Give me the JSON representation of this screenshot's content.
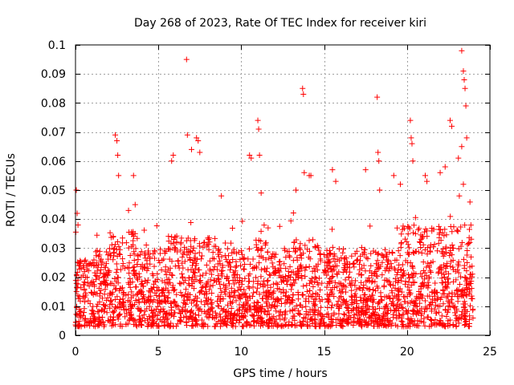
{
  "chart_data": {
    "type": "scatter",
    "title": "Day 268 of 2023, Rate Of TEC Index for receiver kiri",
    "xlabel": "GPS time / hours",
    "ylabel": "ROTI / TECUs",
    "xlim": [
      0,
      25
    ],
    "ylim": [
      0,
      0.1
    ],
    "xticks": [
      0,
      5,
      10,
      15,
      20,
      25
    ],
    "xtick_labels": [
      "0",
      "5",
      "10",
      "15",
      "20",
      "25"
    ],
    "yticks": [
      0,
      0.01,
      0.02,
      0.03,
      0.04,
      0.05,
      0.06,
      0.07,
      0.08,
      0.09,
      0.1
    ],
    "ytick_labels": [
      "0",
      "0.01",
      "0.02",
      "0.03",
      "0.04",
      "0.05",
      "0.06",
      "0.07",
      "0.08",
      "0.09",
      "0.1"
    ],
    "grid": true,
    "marker": "+",
    "color": "#ff0000",
    "series": [
      {
        "name": "ROTI",
        "x": [
          0.05,
          0.1,
          0.15,
          0.2,
          2.4,
          2.5,
          2.55,
          2.6,
          3.2,
          3.5,
          3.6,
          5.8,
          5.9,
          6.7,
          6.75,
          7.0,
          7.3,
          7.4,
          7.5,
          8.8,
          10.5,
          10.6,
          11.0,
          11.05,
          11.1,
          11.2,
          13.3,
          13.7,
          13.75,
          13.8,
          14.1,
          14.2,
          15.5,
          15.7,
          17.5,
          18.2,
          18.25,
          18.3,
          18.35,
          19.2,
          19.6,
          20.2,
          20.25,
          20.3,
          20.35,
          21.1,
          21.2,
          22.0,
          22.3,
          22.6,
          22.7,
          23.1,
          23.3,
          23.4,
          23.45,
          23.5,
          23.55,
          23.6,
          23.3,
          23.4
        ],
        "y": [
          0.05,
          0.042,
          0.038,
          0.025,
          0.069,
          0.067,
          0.062,
          0.055,
          0.043,
          0.055,
          0.045,
          0.06,
          0.062,
          0.095,
          0.069,
          0.064,
          0.068,
          0.067,
          0.063,
          0.048,
          0.062,
          0.061,
          0.074,
          0.071,
          0.062,
          0.049,
          0.05,
          0.085,
          0.083,
          0.056,
          0.055,
          0.055,
          0.057,
          0.053,
          0.057,
          0.082,
          0.063,
          0.06,
          0.05,
          0.055,
          0.052,
          0.074,
          0.068,
          0.066,
          0.06,
          0.055,
          0.053,
          0.056,
          0.058,
          0.074,
          0.072,
          0.061,
          0.098,
          0.091,
          0.088,
          0.085,
          0.079,
          0.068,
          0.065,
          0.052
        ]
      }
    ],
    "band": {
      "description_hours": "dense scatter of values between roughly 0.003 and 0.03 TECU/s across 0-24 h",
      "x_range": [
        0.0,
        24.0
      ],
      "y_low": 0.003,
      "y_typical_high": 0.03,
      "gaps_hours": [
        [
          0.35,
          0.45
        ]
      ]
    }
  }
}
